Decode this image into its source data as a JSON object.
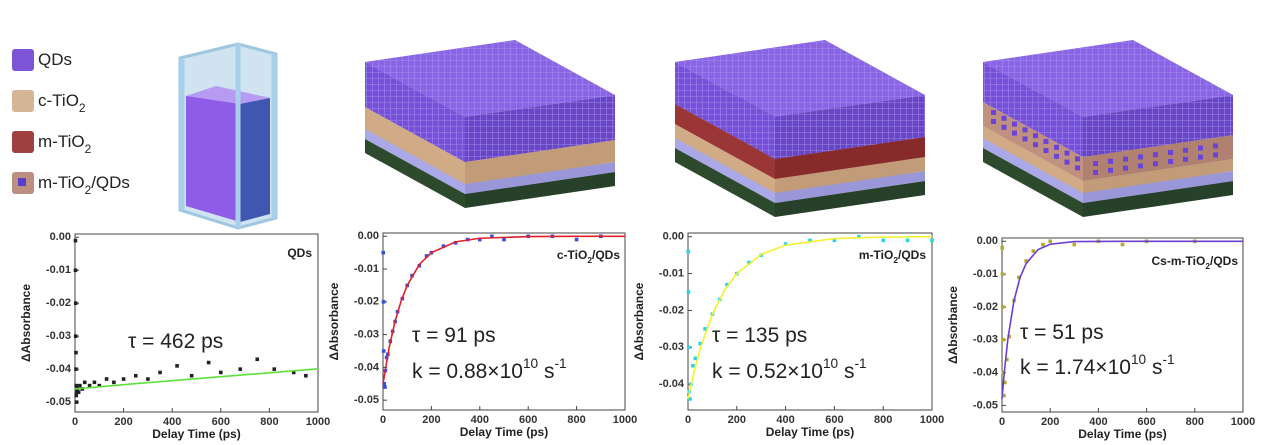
{
  "legend": [
    {
      "parts": [
        {
          "text": "QDs"
        }
      ],
      "color": "#7b55d6"
    },
    {
      "parts": [
        {
          "text": "c-TiO"
        },
        {
          "text": "2",
          "sub": true
        }
      ],
      "color": "#d4b596"
    },
    {
      "parts": [
        {
          "text": "m-TiO"
        },
        {
          "text": "2",
          "sub": true
        }
      ],
      "color": "#a04040"
    },
    {
      "parts": [
        {
          "text": "m-TiO"
        },
        {
          "text": "2",
          "sub": true
        },
        {
          "text": "/QDs"
        }
      ],
      "color": "#bb9080",
      "inner_color": "#5b3bd0"
    }
  ],
  "chart_data": [
    {
      "type": "scatter",
      "title_parts": [
        {
          "text": "QDs"
        }
      ],
      "ylabel": "ΔAbsorbance",
      "xlabel": "Delay Time (ps)",
      "annotations": [
        {
          "parts": [
            {
              "text": "τ = 462 ps"
            }
          ]
        }
      ],
      "xlim": [
        0,
        1000
      ],
      "ylim": [
        -0.053,
        0.001
      ],
      "xticks": [
        0,
        200,
        400,
        600,
        800,
        1000
      ],
      "yticks": [
        {
          "value": 0,
          "label": "0.00"
        },
        -0.01,
        -0.02,
        -0.03,
        -0.04,
        -0.05
      ],
      "series": [
        {
          "mode": "markers",
          "color": "#222222",
          "x": [
            2,
            2,
            3,
            3,
            4,
            4,
            5,
            5,
            6,
            8,
            10,
            15,
            20,
            30,
            40,
            60,
            80,
            100,
            130,
            160,
            200,
            250,
            300,
            350,
            420,
            480,
            550,
            600,
            680,
            750,
            820,
            900,
            950
          ],
          "values": [
            -0.001,
            -0.01,
            -0.02,
            -0.03,
            -0.035,
            -0.04,
            -0.045,
            -0.048,
            -0.05,
            -0.047,
            -0.046,
            -0.047,
            -0.045,
            -0.046,
            -0.044,
            -0.045,
            -0.044,
            -0.045,
            -0.043,
            -0.044,
            -0.043,
            -0.042,
            -0.043,
            -0.041,
            -0.039,
            -0.042,
            -0.038,
            -0.041,
            -0.04,
            -0.037,
            -0.04,
            -0.041,
            -0.042
          ]
        },
        {
          "mode": "line",
          "color": "#5be33c",
          "x": [
            0,
            200,
            400,
            600,
            800,
            1000
          ],
          "values": [
            -0.046,
            -0.0447,
            -0.0435,
            -0.0423,
            -0.0411,
            -0.0399
          ]
        }
      ]
    },
    {
      "type": "scatter",
      "title_parts": [
        {
          "text": "c-TiO"
        },
        {
          "text": "2",
          "sub": true
        },
        {
          "text": "/QDs"
        }
      ],
      "ylabel": "ΔAbsorbance",
      "xlabel": "Delay Time (ps)",
      "annotations": [
        {
          "parts": [
            {
              "text": "τ = 91 ps"
            }
          ]
        },
        {
          "parts": [
            {
              "text": "k = 0.88×10"
            },
            {
              "text": "10",
              "sup": true
            },
            {
              "text": " s"
            },
            {
              "text": "-1",
              "sup": true
            }
          ]
        }
      ],
      "xlim": [
        0,
        1000
      ],
      "ylim": [
        -0.053,
        0.001
      ],
      "xticks": [
        0,
        200,
        400,
        600,
        800,
        1000
      ],
      "yticks": [
        {
          "value": 0,
          "label": "0.00"
        },
        -0.01,
        -0.02,
        -0.03,
        -0.04,
        -0.05
      ],
      "series": [
        {
          "mode": "markers",
          "color": "#3a4fe0",
          "x": [
            1,
            2,
            3,
            5,
            8,
            10,
            15,
            20,
            30,
            40,
            50,
            60,
            80,
            100,
            120,
            150,
            180,
            200,
            250,
            300,
            350,
            400,
            450,
            500,
            600,
            700,
            800,
            900
          ],
          "values": [
            -0.005,
            -0.02,
            -0.035,
            -0.045,
            -0.046,
            -0.041,
            -0.037,
            -0.036,
            -0.032,
            -0.029,
            -0.026,
            -0.023,
            -0.019,
            -0.015,
            -0.012,
            -0.009,
            -0.006,
            -0.005,
            -0.003,
            -0.002,
            -0.001,
            -0.001,
            0,
            -0.001,
            0,
            0,
            -0.001,
            0
          ]
        },
        {
          "mode": "line",
          "color": "#e0202a",
          "x": [
            0,
            25,
            50,
            75,
            100,
            150,
            200,
            300,
            400,
            600,
            800,
            1000
          ],
          "values": [
            -0.045,
            -0.0341,
            -0.0259,
            -0.0197,
            -0.015,
            -0.0086,
            -0.005,
            -0.0017,
            -0.0006,
            -0.0001,
            0,
            0
          ]
        }
      ]
    },
    {
      "type": "scatter",
      "title_parts": [
        {
          "text": "m-TiO"
        },
        {
          "text": "2",
          "sub": true
        },
        {
          "text": "/QDs"
        }
      ],
      "ylabel": "ΔAbsorbance",
      "xlabel": "Delay Time (ps)",
      "annotations": [
        {
          "parts": [
            {
              "text": "τ = 135 ps"
            }
          ]
        },
        {
          "parts": [
            {
              "text": "k = 0.52×10"
            },
            {
              "text": "10",
              "sup": true
            },
            {
              "text": " s"
            },
            {
              "text": "-1",
              "sup": true
            }
          ]
        }
      ],
      "xlim": [
        0,
        1000
      ],
      "ylim": [
        -0.047,
        0.001
      ],
      "xticks": [
        0,
        200,
        400,
        600,
        800,
        1000
      ],
      "yticks": [
        {
          "value": 0,
          "label": "0.00"
        },
        -0.01,
        -0.02,
        -0.03,
        -0.04
      ],
      "series": [
        {
          "mode": "markers",
          "color": "#27d4e8",
          "x": [
            1,
            2,
            3,
            5,
            8,
            12,
            20,
            30,
            50,
            70,
            100,
            130,
            160,
            200,
            250,
            300,
            400,
            500,
            600,
            700,
            800,
            900,
            1000
          ],
          "values": [
            -0.004,
            -0.015,
            -0.03,
            -0.042,
            -0.044,
            -0.04,
            -0.035,
            -0.033,
            -0.029,
            -0.025,
            -0.021,
            -0.017,
            -0.013,
            -0.01,
            -0.007,
            -0.005,
            -0.002,
            -0.001,
            -0.001,
            0,
            -0.001,
            -0.001,
            -0.001
          ]
        },
        {
          "mode": "line",
          "color": "#f2f230",
          "x": [
            0,
            25,
            50,
            100,
            150,
            200,
            300,
            400,
            600,
            800,
            1000
          ],
          "values": [
            -0.044,
            -0.0366,
            -0.0304,
            -0.021,
            -0.0145,
            -0.01,
            -0.0048,
            -0.0023,
            -0.0005,
            -0.0001,
            0
          ]
        }
      ]
    },
    {
      "type": "scatter",
      "title_parts": [
        {
          "text": "Cs-m-TiO"
        },
        {
          "text": "2",
          "sub": true
        },
        {
          "text": "/QDs"
        }
      ],
      "ylabel": "ΔAbsorbance",
      "xlabel": "Delay Time (ps)",
      "annotations": [
        {
          "parts": [
            {
              "text": "τ = 51 ps"
            }
          ]
        },
        {
          "parts": [
            {
              "text": "k = 1.74×10"
            },
            {
              "text": "10",
              "sup": true
            },
            {
              "text": " s"
            },
            {
              "text": "-1",
              "sup": true
            }
          ]
        }
      ],
      "xlim": [
        0,
        1000
      ],
      "ylim": [
        -0.052,
        0.001
      ],
      "xticks": [
        0,
        200,
        400,
        600,
        800,
        1000
      ],
      "yticks": [
        {
          "value": 0,
          "label": "0.00"
        },
        -0.01,
        -0.02,
        -0.03,
        -0.04,
        -0.05
      ],
      "series": [
        {
          "mode": "markers",
          "color": "#b5a82a",
          "x": [
            1,
            2,
            3,
            4,
            5,
            8,
            12,
            20,
            30,
            50,
            70,
            100,
            130,
            170,
            200,
            300,
            400,
            500,
            600,
            800
          ],
          "values": [
            -0.002,
            -0.01,
            -0.02,
            -0.03,
            -0.04,
            -0.047,
            -0.043,
            -0.036,
            -0.029,
            -0.018,
            -0.011,
            -0.006,
            -0.003,
            -0.001,
            0,
            -0.001,
            0,
            -0.001,
            0,
            0
          ]
        },
        {
          "mode": "line",
          "color": "#6a3fd0",
          "x": [
            0,
            10,
            25,
            50,
            75,
            100,
            150,
            200,
            300,
            500,
            1000
          ],
          "values": [
            -0.048,
            -0.0395,
            -0.0294,
            -0.018,
            -0.011,
            -0.0068,
            -0.0025,
            -0.0009,
            -0.0001,
            0,
            0
          ]
        }
      ]
    }
  ]
}
